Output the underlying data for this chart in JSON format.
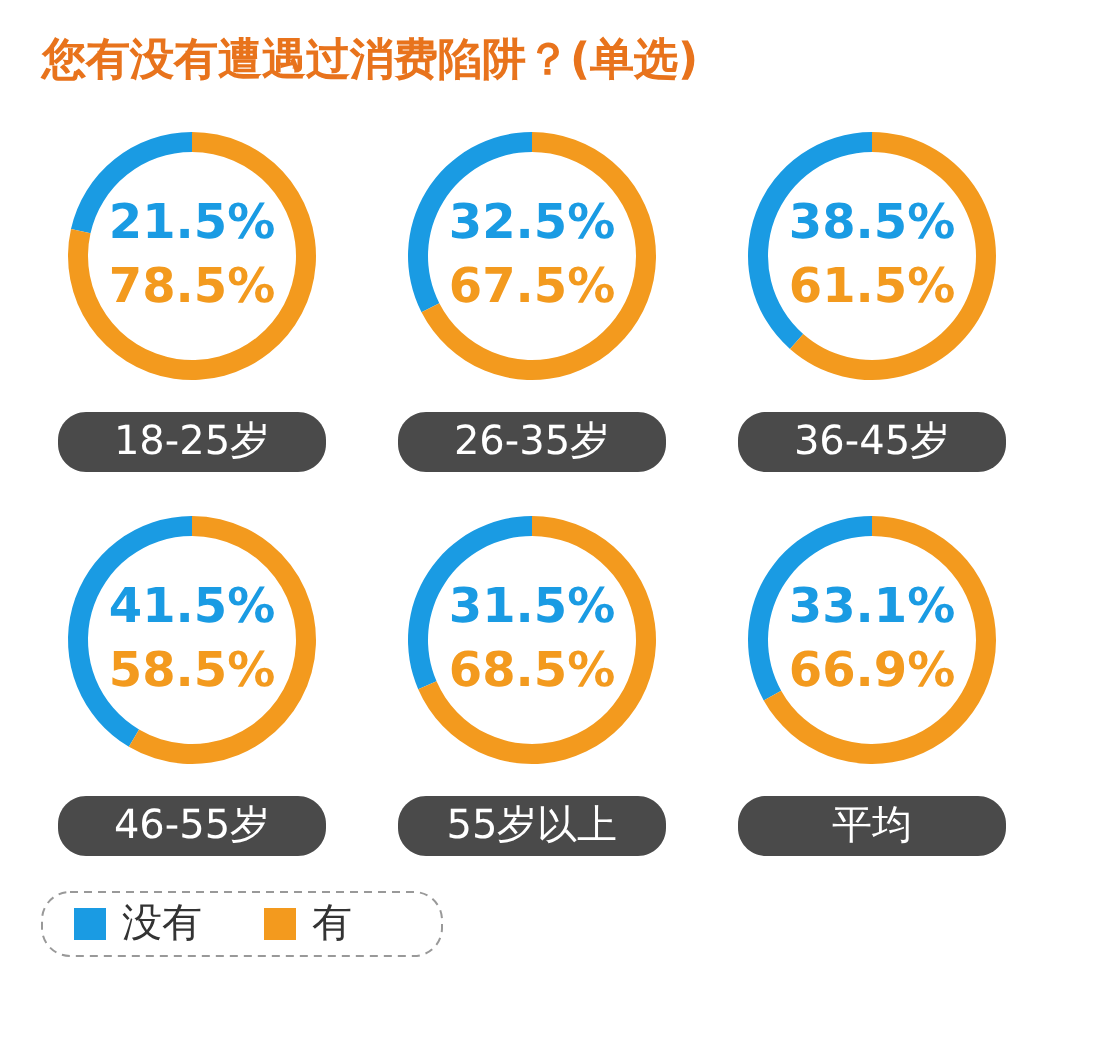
{
  "chart_data": [
    {
      "type": "other",
      "title": "您有没有遭遇过消费陷阱？(单选)"
    },
    {
      "type": "donut",
      "title": "18-25岁",
      "categories": [
        "没有",
        "有"
      ],
      "values": [
        21.5,
        78.5
      ],
      "colors": [
        "#1a9be3",
        "#f39a1e"
      ],
      "value_labels": [
        "21.5%",
        "78.5%"
      ],
      "legend": "bottom"
    },
    {
      "type": "donut",
      "title": "26-35岁",
      "categories": [
        null,
        null
      ],
      "values": [
        32.5,
        67.5
      ],
      "colors": [
        "#1a9be3",
        "#f39a1e"
      ],
      "value_labels": [
        "32.5%",
        "67.5%"
      ]
    },
    {
      "type": "donut",
      "title": "36-45岁",
      "categories": [
        null,
        null
      ],
      "values": [
        38.5,
        61.5
      ],
      "colors": [
        "#1a9be3",
        "#f39a1e"
      ],
      "value_labels": [
        "38.5%",
        "61.5%"
      ]
    },
    {
      "type": "donut",
      "title": "46-55岁",
      "categories": [
        null,
        null
      ],
      "values": [
        41.5,
        58.5
      ],
      "colors": [
        "#1a9be3",
        "#f39a1e"
      ],
      "value_labels": [
        "41.5%",
        "58.5%"
      ]
    },
    {
      "type": "donut",
      "title": "55岁以上",
      "categories": [
        null,
        null
      ],
      "values": [
        31.5,
        68.5
      ],
      "colors": [
        "#1a9be3",
        "#f39a1e"
      ],
      "value_labels": [
        "31.5%",
        "68.5%"
      ]
    },
    {
      "type": "donut",
      "title": "平均",
      "categories": [
        null,
        null
      ],
      "values": [
        33.1,
        66.9
      ],
      "colors": [
        "#1a9be3",
        "#f39a1e"
      ],
      "value_labels": [
        "33.1%",
        "66.9%"
      ]
    }
  ]
}
